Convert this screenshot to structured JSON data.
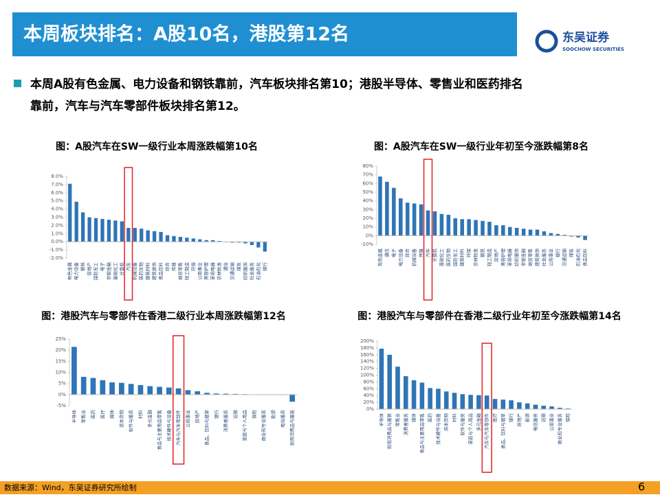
{
  "header": {
    "title": "本周板块排名：A股10名，港股第12名",
    "logo_cn": "东吴证券",
    "logo_en": "SOOCHOW SECURITIES"
  },
  "bullet": {
    "line1": "本周A股有色金属、电力设备和钢铁靠前，汽车板块排名第10；港股半导体、零售业和医药排名",
    "line2": "靠前，汽车与汽车零部件板块排名第12。"
  },
  "footer": {
    "source": "数据来源：Wind，东吴证券研究所绘制",
    "page": "6"
  },
  "chart_data": [
    {
      "type": "bar",
      "title": "图：A股汽车在SW一级行业本周涨跌幅第10名",
      "color": "#2e75b6",
      "highlight_index": 9,
      "highlight_color": "#e02020",
      "categories": [
        "有色金属",
        "电力设备",
        "钢铁",
        "房地产",
        "国防军工",
        "电子",
        "非银金融",
        "基础化工",
        "计算机",
        "汽车",
        "机械设备",
        "医药生物",
        "建筑材料",
        "建筑装饰",
        "食品饮料",
        "综合",
        "传媒",
        "商贸零售",
        "轻工制造",
        "环保",
        "公用事业",
        "美容护理",
        "家用电器",
        "农林牧渔",
        "通信",
        "交通运输",
        "煤炭",
        "纺织服饰",
        "社会服务",
        "石油石化",
        "银行"
      ],
      "values": [
        7.1,
        4.9,
        3.6,
        3.0,
        2.9,
        2.8,
        2.7,
        2.6,
        2.5,
        1.7,
        1.7,
        1.6,
        1.4,
        1.3,
        1.2,
        0.8,
        0.7,
        0.6,
        0.5,
        0.4,
        0.3,
        0.2,
        0.2,
        0.1,
        0.0,
        -0.1,
        -0.1,
        -0.2,
        -0.4,
        -0.7,
        -1.2
      ],
      "ylim": [
        -2,
        8
      ],
      "yticks": [
        {
          "value": -2,
          "label": "-2.0%"
        },
        {
          "value": -1,
          "label": "-1.0%"
        },
        {
          "value": 0,
          "label": "0.0%"
        },
        {
          "value": 1,
          "label": "1.0%"
        },
        {
          "value": 2,
          "label": "2.0%"
        },
        {
          "value": 3,
          "label": "3.0%"
        },
        {
          "value": 4,
          "label": "4.0%"
        },
        {
          "value": 5,
          "label": "5.0%"
        },
        {
          "value": 6,
          "label": "6.0%"
        },
        {
          "value": 7,
          "label": "7.0%"
        },
        {
          "value": 8,
          "label": "8.0%"
        }
      ]
    },
    {
      "type": "bar",
      "title": "图：A股汽车在SW一级行业年初至今涨跌幅第8名",
      "color": "#2e75b6",
      "highlight_index": 7,
      "highlight_color": "#e02020",
      "categories": [
        "有色金属",
        "通信",
        "电子",
        "电力设备",
        "综合",
        "机械设备",
        "传媒",
        "汽车",
        "计算机",
        "基础化工",
        "医药生物",
        "国防军工",
        "建筑材料",
        "环保",
        "农林牧渔",
        "钢铁",
        "轻工制造",
        "房地产",
        "美容护理",
        "家用电器",
        "纺织服饰",
        "非银金融",
        "商贸零售",
        "建筑装饰",
        "社会服务",
        "公用事业",
        "银行",
        "交通运输",
        "煤炭",
        "石油石化",
        "食品饮料"
      ],
      "values": [
        68,
        62,
        55,
        43,
        38,
        37,
        36,
        29,
        28,
        25,
        24,
        20,
        19,
        19,
        18,
        17,
        16,
        12,
        12,
        10,
        9,
        8,
        7,
        7,
        5,
        3,
        2,
        1,
        -1,
        -2,
        -5
      ],
      "ylim": [
        -10,
        80
      ],
      "yticks": [
        {
          "value": -10,
          "label": "-10%"
        },
        {
          "value": 0,
          "label": "0%"
        },
        {
          "value": 10,
          "label": "10%"
        },
        {
          "value": 20,
          "label": "20%"
        },
        {
          "value": 30,
          "label": "30%"
        },
        {
          "value": 40,
          "label": "40%"
        },
        {
          "value": 50,
          "label": "50%"
        },
        {
          "value": 60,
          "label": "60%"
        },
        {
          "value": 70,
          "label": "70%"
        },
        {
          "value": 80,
          "label": "80%"
        }
      ]
    },
    {
      "type": "bar",
      "title": "图：港股汽车与零部件在香港二级行业本周涨跌幅第12名",
      "color": "#2e75b6",
      "highlight_index": 11,
      "highlight_color": "#e02020",
      "categories": [
        "半导体",
        "零售业",
        "医药",
        "医疗",
        "媒体",
        "资本货物",
        "软件与服务",
        "材料",
        "多元金融",
        "食品与主要用品零售",
        "技术硬件与设备",
        "汽车与汽车零部件",
        "公用事业",
        "房地产",
        "食品、饮料与烟草",
        "银行",
        "消费者服务",
        "运输",
        "家庭与个人用品",
        "保险",
        "商业和专业服务",
        "能源",
        "电信服务",
        "耐用消费品与服装"
      ],
      "values": [
        21.5,
        8,
        7.5,
        6.5,
        5.5,
        5.3,
        4.8,
        4.3,
        3.8,
        3.5,
        3.2,
        2.8,
        2.0,
        1.5,
        0.8,
        0.5,
        0.4,
        0.3,
        0.2,
        0.1,
        0.0,
        -0.1,
        -0.2,
        -3.2
      ],
      "ylim": [
        -5,
        25
      ],
      "yticks": [
        {
          "value": -5,
          "label": "-5%"
        },
        {
          "value": 0,
          "label": "0%"
        },
        {
          "value": 5,
          "label": "5%"
        },
        {
          "value": 10,
          "label": "10%"
        },
        {
          "value": 15,
          "label": "15%"
        },
        {
          "value": 20,
          "label": "20%"
        },
        {
          "value": 25,
          "label": "25%"
        }
      ]
    },
    {
      "type": "bar",
      "title": "图：港股汽车与零部件在香港二级行业年初至今涨跌幅第14名",
      "color": "#2e75b6",
      "highlight_index": 13,
      "highlight_color": "#e02020",
      "categories": [
        "半导体",
        "耐用消费品与服装",
        "零售业",
        "消费者服务",
        "媒体",
        "食品与主要用品零售",
        "医药",
        "技术硬件与设备",
        "资本货物",
        "材料",
        "软件与服务",
        "家庭与个人用品",
        "多元金融",
        "汽车与汽车零部件",
        "医疗",
        "食品、饮料与烟草",
        "银行",
        "房地产",
        "能源",
        "电信服务",
        "运输",
        "公用事业",
        "商业和专业服务",
        "保险"
      ],
      "values": [
        178,
        160,
        125,
        97,
        85,
        78,
        62,
        60,
        52,
        48,
        44,
        42,
        41,
        40,
        30,
        28,
        26,
        20,
        17,
        13,
        10,
        8,
        4,
        2
      ],
      "ylim": [
        0,
        200
      ],
      "yticks": [
        {
          "value": 0,
          "label": "0%"
        },
        {
          "value": 20,
          "label": "20%"
        },
        {
          "value": 40,
          "label": "40%"
        },
        {
          "value": 60,
          "label": "60%"
        },
        {
          "value": 80,
          "label": "80%"
        },
        {
          "value": 100,
          "label": "100%"
        },
        {
          "value": 120,
          "label": "120%"
        },
        {
          "value": 140,
          "label": "140%"
        },
        {
          "value": 160,
          "label": "160%"
        },
        {
          "value": 180,
          "label": "180%"
        },
        {
          "value": 200,
          "label": "200%"
        }
      ]
    }
  ]
}
